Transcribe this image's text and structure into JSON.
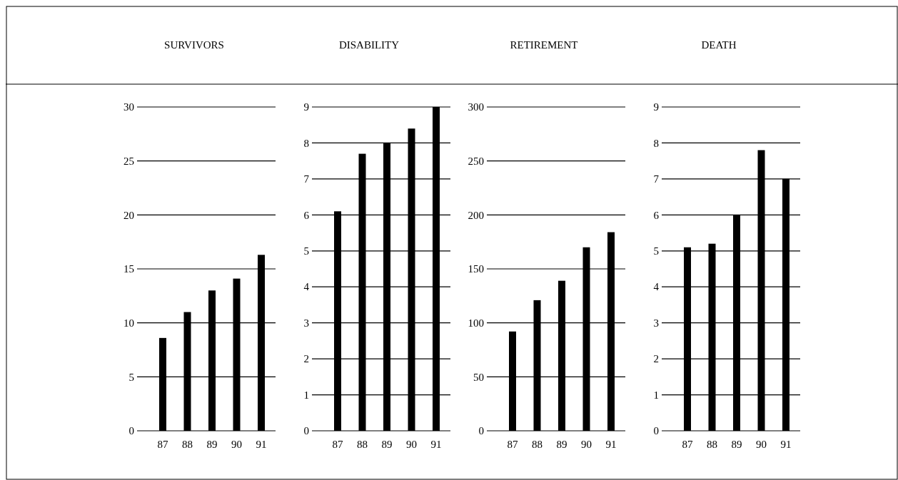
{
  "chart_data": [
    {
      "type": "bar",
      "title": "SURVIVORS",
      "categories": [
        "87",
        "88",
        "89",
        "90",
        "91"
      ],
      "values": [
        8.6,
        11,
        13,
        14.1,
        16.3
      ],
      "color": "#000000",
      "ylim": [
        0,
        30
      ],
      "yticks": [
        0,
        5,
        10,
        15,
        20,
        25,
        30
      ],
      "grid": "y"
    },
    {
      "type": "bar",
      "title": "DISABILITY",
      "categories": [
        "87",
        "88",
        "89",
        "90",
        "91"
      ],
      "values": [
        6.1,
        7.7,
        8,
        8.4,
        9
      ],
      "color": "#000000",
      "ylim": [
        0,
        9
      ],
      "yticks": [
        0,
        1,
        2,
        3,
        4,
        5,
        6,
        7,
        8,
        9
      ],
      "grid": "y"
    },
    {
      "type": "bar",
      "title": "RETIREMENT",
      "categories": [
        "87",
        "88",
        "89",
        "90",
        "91"
      ],
      "values": [
        92,
        121,
        139,
        170,
        184
      ],
      "color": "#000000",
      "ylim": [
        0,
        300
      ],
      "yticks": [
        0,
        50,
        100,
        150,
        200,
        250,
        300
      ],
      "grid": "y"
    },
    {
      "type": "bar",
      "title": "DEATH",
      "categories": [
        "87",
        "88",
        "89",
        "90",
        "91"
      ],
      "values": [
        5.1,
        5.2,
        6,
        7.8,
        7
      ],
      "color": "#000000",
      "ylim": [
        0,
        9
      ],
      "yticks": [
        0,
        1,
        2,
        3,
        4,
        5,
        6,
        7,
        8,
        9
      ],
      "grid": "y"
    }
  ]
}
